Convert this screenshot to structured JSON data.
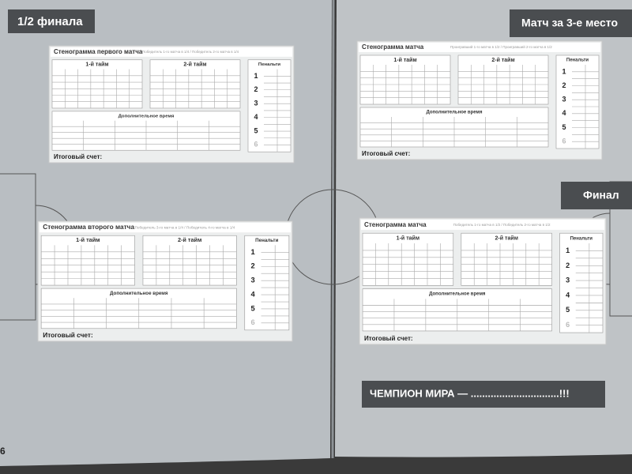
{
  "left_page": {
    "header": "1/2 финала",
    "page_number": 6
  },
  "right_page": {
    "header": "Матч за 3-е место",
    "final_header": "Финал",
    "champion": "ЧЕМПИОН МИРА — ...............................!!!"
  },
  "sheets": [
    {
      "title": "Стенограмма первого матча",
      "subtitle": "Победитель 1-го матча в 1/4 / Победитель 2-го матча в 1/4"
    },
    {
      "title": "Стенограмма второго матча",
      "subtitle": "Победитель 3-го матча в 1/4 / Победитель 4-го матча в 1/4"
    },
    {
      "title": "Стенограмма матча",
      "subtitle": "Проигравший 1-го матча в 1/2 / Проигравший 2-го матча в 1/2"
    },
    {
      "title": "Стенограмма матча",
      "subtitle": "Победитель 1-го матча в 1/2 / Победитель 2-го матча в 1/2"
    }
  ],
  "labels": {
    "first_half": "1-й тайм",
    "second_half": "2-й тайм",
    "penalties": "Пенальти",
    "extra_time": "Дополнительное время",
    "final_score": "Итоговый счет:",
    "penalty_numbers": [
      1,
      2,
      3,
      4,
      5,
      6
    ]
  }
}
